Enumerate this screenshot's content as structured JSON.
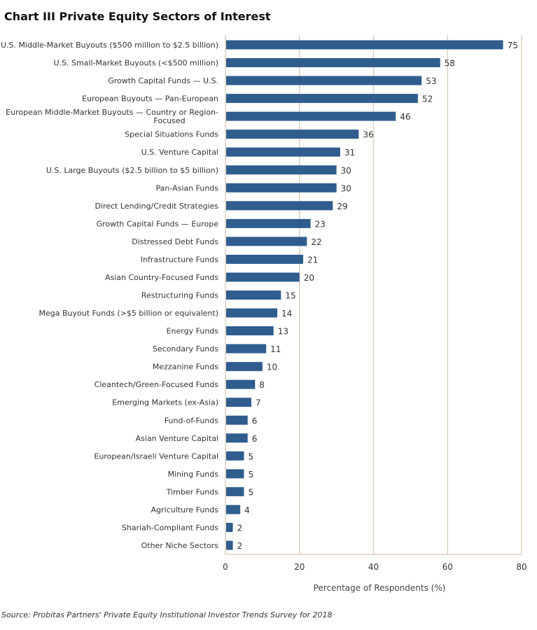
{
  "chart_data": {
    "type": "bar",
    "orientation": "horizontal",
    "title": "Chart III  Private Equity Sectors of Interest",
    "xlabel": "Percentage of Respondents (%)",
    "ylabel": "",
    "xlim": [
      0,
      80
    ],
    "xticks": [
      0,
      20,
      40,
      60,
      80
    ],
    "grid": true,
    "categories": [
      "U.S. Middle-Market Buyouts ($500 million to $2.5 billion)",
      "U.S. Small-Market Buyouts (<$500 million)",
      "Growth Capital Funds — U.S.",
      "European Buyouts — Pan-European",
      "European Middle-Market Buyouts — Country or Region-Focused",
      "Special Situations Funds",
      "U.S. Venture Capital",
      "U.S. Large Buyouts ($2.5 billion to $5 billion)",
      "Pan-Asian Funds",
      "Direct Lending/Credit Strategies",
      "Growth Capital Funds — Europe",
      "Distressed Debt Funds",
      "Infrastructure Funds",
      "Asian Country-Focused Funds",
      "Restructuring Funds",
      "Mega Buyout Funds (>$5 billion or equivalent)",
      "Energy Funds",
      "Secondary Funds",
      "Mezzanine Funds",
      "Cleantech/Green-Focused Funds",
      "Emerging Markets (ex-Asia)",
      "Fund-of-Funds",
      "Asian Venture Capital",
      "European/Israeli Venture Capital",
      "Mining Funds",
      "Timber Funds",
      "Agriculture Funds",
      "Shariah-Compliant Funds",
      "Other Niche Sectors"
    ],
    "values": [
      75,
      58,
      53,
      52,
      46,
      36,
      31,
      30,
      30,
      29,
      23,
      22,
      21,
      20,
      15,
      14,
      13,
      11,
      10,
      8,
      7,
      6,
      6,
      5,
      5,
      5,
      4,
      2,
      2
    ],
    "bar_color": "#2f5d8e",
    "grid_color": "#dccfbf"
  },
  "source": "Source: Probitas Partners' Private Equity Institutional Investor Trends Survey for 2018"
}
